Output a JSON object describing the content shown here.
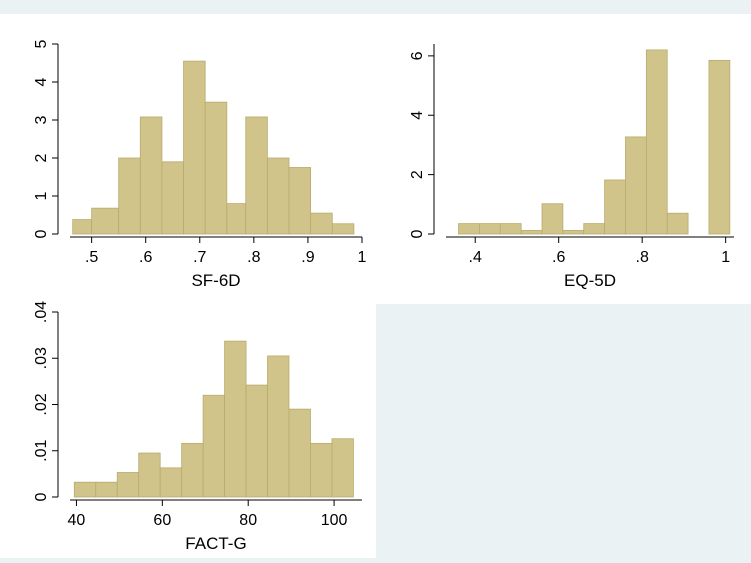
{
  "colors": {
    "background": "#eaf2f3",
    "plot_background": "#ffffff",
    "bar_fill": "#d0c48b",
    "bar_edge": "#b7ab6d",
    "axis": "#000000"
  },
  "chart_data": [
    {
      "type": "bar",
      "xlabel": "SF-6D",
      "ylabel": "",
      "bins": [
        {
          "x0": 0.465,
          "x1": 0.5,
          "value": 0.38
        },
        {
          "x0": 0.5,
          "x1": 0.55,
          "value": 0.68
        },
        {
          "x0": 0.55,
          "x1": 0.59,
          "value": 2.0
        },
        {
          "x0": 0.59,
          "x1": 0.63,
          "value": 3.08
        },
        {
          "x0": 0.63,
          "x1": 0.67,
          "value": 1.9
        },
        {
          "x0": 0.67,
          "x1": 0.71,
          "value": 4.55
        },
        {
          "x0": 0.71,
          "x1": 0.75,
          "value": 3.47
        },
        {
          "x0": 0.75,
          "x1": 0.785,
          "value": 0.8
        },
        {
          "x0": 0.785,
          "x1": 0.825,
          "value": 3.08
        },
        {
          "x0": 0.825,
          "x1": 0.865,
          "value": 2.0
        },
        {
          "x0": 0.865,
          "x1": 0.905,
          "value": 1.75
        },
        {
          "x0": 0.905,
          "x1": 0.945,
          "value": 0.55
        },
        {
          "x0": 0.945,
          "x1": 0.985,
          "value": 0.27
        }
      ],
      "xlim": [
        0.46,
        1.0
      ],
      "ylim": [
        0,
        5
      ],
      "xticks": [
        0.5,
        0.6,
        0.7,
        0.8,
        0.9,
        1.0
      ],
      "xtick_labels": [
        ".5",
        ".6",
        ".7",
        ".8",
        ".9",
        "1"
      ],
      "yticks": [
        0,
        1,
        2,
        3,
        4,
        5
      ],
      "ytick_labels": [
        "0",
        "1",
        "2",
        "3",
        "4",
        "5"
      ],
      "grid": false
    },
    {
      "type": "bar",
      "xlabel": "EQ-5D",
      "ylabel": "",
      "bins": [
        {
          "x0": 0.36,
          "x1": 0.41,
          "value": 0.35
        },
        {
          "x0": 0.41,
          "x1": 0.46,
          "value": 0.35
        },
        {
          "x0": 0.46,
          "x1": 0.51,
          "value": 0.35
        },
        {
          "x0": 0.51,
          "x1": 0.56,
          "value": 0.12
        },
        {
          "x0": 0.56,
          "x1": 0.61,
          "value": 1.02
        },
        {
          "x0": 0.61,
          "x1": 0.66,
          "value": 0.12
        },
        {
          "x0": 0.66,
          "x1": 0.71,
          "value": 0.35
        },
        {
          "x0": 0.71,
          "x1": 0.76,
          "value": 1.82
        },
        {
          "x0": 0.76,
          "x1": 0.81,
          "value": 3.27
        },
        {
          "x0": 0.81,
          "x1": 0.86,
          "value": 6.2
        },
        {
          "x0": 0.86,
          "x1": 0.91,
          "value": 0.7
        },
        {
          "x0": 0.91,
          "x1": 0.96,
          "value": 0.0
        },
        {
          "x0": 0.96,
          "x1": 1.01,
          "value": 5.85
        }
      ],
      "xlim": [
        0.33,
        1.02
      ],
      "ylim": [
        0,
        6.4
      ],
      "xticks": [
        0.4,
        0.6,
        0.8,
        1.0
      ],
      "xtick_labels": [
        ".4",
        ".6",
        ".8",
        "1"
      ],
      "yticks": [
        0,
        2,
        4,
        6
      ],
      "ytick_labels": [
        "0",
        "2",
        "4",
        "6"
      ],
      "grid": false
    },
    {
      "type": "bar",
      "xlabel": "FACT-G",
      "ylabel": "",
      "bins": [
        {
          "x0": 39.5,
          "x1": 44.5,
          "value": 0.0032
        },
        {
          "x0": 44.5,
          "x1": 49.5,
          "value": 0.0032
        },
        {
          "x0": 49.5,
          "x1": 54.5,
          "value": 0.0053
        },
        {
          "x0": 54.5,
          "x1": 59.5,
          "value": 0.0095
        },
        {
          "x0": 59.5,
          "x1": 64.5,
          "value": 0.0063
        },
        {
          "x0": 64.5,
          "x1": 69.5,
          "value": 0.0116
        },
        {
          "x0": 69.5,
          "x1": 74.5,
          "value": 0.022
        },
        {
          "x0": 74.5,
          "x1": 79.5,
          "value": 0.0337
        },
        {
          "x0": 79.5,
          "x1": 84.5,
          "value": 0.0242
        },
        {
          "x0": 84.5,
          "x1": 89.5,
          "value": 0.0305
        },
        {
          "x0": 89.5,
          "x1": 94.5,
          "value": 0.019
        },
        {
          "x0": 94.5,
          "x1": 99.5,
          "value": 0.0116
        },
        {
          "x0": 99.5,
          "x1": 104.5,
          "value": 0.0126
        }
      ],
      "xlim": [
        38.5,
        106.5
      ],
      "ylim": [
        0,
        0.04
      ],
      "xticks": [
        40,
        60,
        80,
        100
      ],
      "xtick_labels": [
        "40",
        "60",
        "80",
        "100"
      ],
      "yticks": [
        0,
        0.01,
        0.02,
        0.03,
        0.04
      ],
      "ytick_labels": [
        "0",
        ".01",
        ".02",
        ".03",
        ".04"
      ],
      "grid": false
    }
  ]
}
